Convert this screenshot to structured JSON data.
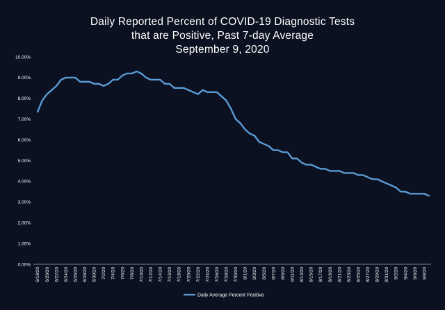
{
  "chart_data": {
    "type": "line",
    "title_lines": [
      "Daily Reported Percent of COVID-19 Diagnostic Tests",
      "that are Positive, Past 7-day Average",
      "September 9, 2020"
    ],
    "xlabel": "",
    "ylabel": "",
    "ylim": [
      0,
      10
    ],
    "y_ticks": [
      "0.00%",
      "1.00%",
      "2.00%",
      "3.00%",
      "4.00%",
      "5.00%",
      "6.00%",
      "7.00%",
      "8.00%",
      "9.00%",
      "10.00%"
    ],
    "x_tick_labels": [
      "6/18/20",
      "6/20/20",
      "6/22/20",
      "6/24/20",
      "6/26/20",
      "6/28/20",
      "6/30/20",
      "7/2/20",
      "7/4/20",
      "7/6/20",
      "7/8/20",
      "7/10/20",
      "7/12/20",
      "7/14/20",
      "7/16/20",
      "7/18/20",
      "7/20/20",
      "7/22/20",
      "7/24/20",
      "7/26/20",
      "7/28/20",
      "7/30/20",
      "8/1/20",
      "8/3/20",
      "8/5/20",
      "8/7/20",
      "8/9/20",
      "8/11/20",
      "8/13/20",
      "8/15/20",
      "8/17/20",
      "8/19/20",
      "8/21/20",
      "8/23/20",
      "8/25/20",
      "8/27/20",
      "8/29/20",
      "8/31/20",
      "9/2/20",
      "9/4/20",
      "9/6/20",
      "9/8/20"
    ],
    "series": [
      {
        "name": "Daily Average Percent Positive",
        "color": "#5b9bd5",
        "values": [
          7.35,
          7.9,
          8.2,
          8.4,
          8.6,
          8.9,
          9.0,
          9.0,
          9.0,
          8.8,
          8.8,
          8.8,
          8.7,
          8.7,
          8.6,
          8.7,
          8.9,
          8.9,
          9.1,
          9.2,
          9.2,
          9.3,
          9.2,
          9.0,
          8.9,
          8.9,
          8.9,
          8.7,
          8.7,
          8.5,
          8.5,
          8.5,
          8.4,
          8.3,
          8.2,
          8.4,
          8.3,
          8.3,
          8.3,
          8.1,
          7.9,
          7.5,
          7.0,
          6.8,
          6.5,
          6.3,
          6.2,
          5.9,
          5.8,
          5.7,
          5.5,
          5.5,
          5.4,
          5.4,
          5.1,
          5.1,
          4.9,
          4.8,
          4.8,
          4.7,
          4.6,
          4.6,
          4.5,
          4.5,
          4.5,
          4.4,
          4.4,
          4.4,
          4.3,
          4.3,
          4.2,
          4.1,
          4.1,
          4.0,
          3.9,
          3.8,
          3.7,
          3.5,
          3.5,
          3.4,
          3.4,
          3.4,
          3.4,
          3.3
        ]
      }
    ],
    "legend": {
      "position": "bottom",
      "label": "Daily Average Percent Positive"
    }
  }
}
